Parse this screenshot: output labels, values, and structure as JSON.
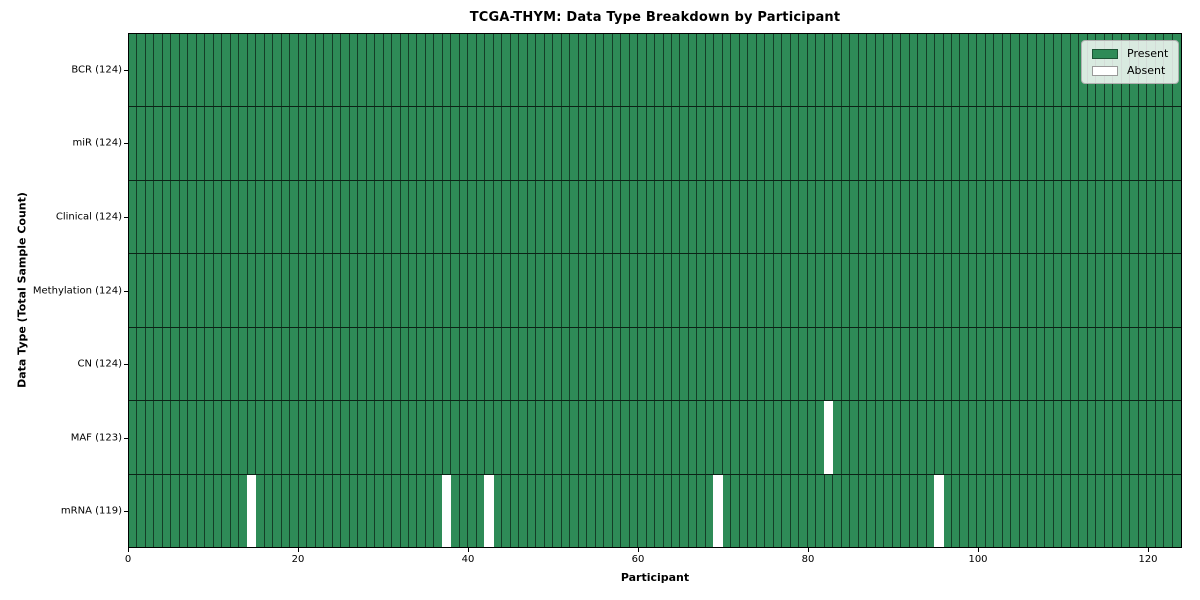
{
  "chart_data": {
    "type": "heatmap",
    "title": "TCGA-THYM: Data Type Breakdown by Participant",
    "xlabel": "Participant",
    "ylabel": "Data Type (Total Sample Count)",
    "n_participants": 124,
    "xlim": [
      0,
      124
    ],
    "x_ticks": [
      0,
      20,
      40,
      60,
      80,
      100,
      120
    ],
    "x_tick_labels": [
      "0",
      "20",
      "40",
      "60",
      "80",
      "100",
      "120"
    ],
    "grid": false,
    "legend_position": "upper right",
    "rows": [
      {
        "label": "BCR (124)",
        "data_type": "BCR",
        "present_count": 124,
        "absent_participants": []
      },
      {
        "label": "miR (124)",
        "data_type": "miR",
        "present_count": 124,
        "absent_participants": []
      },
      {
        "label": "Clinical (124)",
        "data_type": "Clinical",
        "present_count": 124,
        "absent_participants": []
      },
      {
        "label": "Methylation (124)",
        "data_type": "Methylation",
        "present_count": 124,
        "absent_participants": []
      },
      {
        "label": "CN (124)",
        "data_type": "CN",
        "present_count": 124,
        "absent_participants": []
      },
      {
        "label": "MAF (123)",
        "data_type": "MAF",
        "present_count": 123,
        "absent_participants": [
          82
        ]
      },
      {
        "label": "mRNA (119)",
        "data_type": "mRNA",
        "present_count": 119,
        "absent_participants": [
          14,
          37,
          42,
          69,
          95
        ]
      }
    ],
    "legend": [
      {
        "label": "Present",
        "color": "#2e8b57"
      },
      {
        "label": "Absent",
        "color": "#ffffff"
      }
    ],
    "colors": {
      "present": "#2e8b57",
      "absent": "#ffffff",
      "cell_edge": "#1e4d35",
      "spine": "#000000"
    }
  }
}
